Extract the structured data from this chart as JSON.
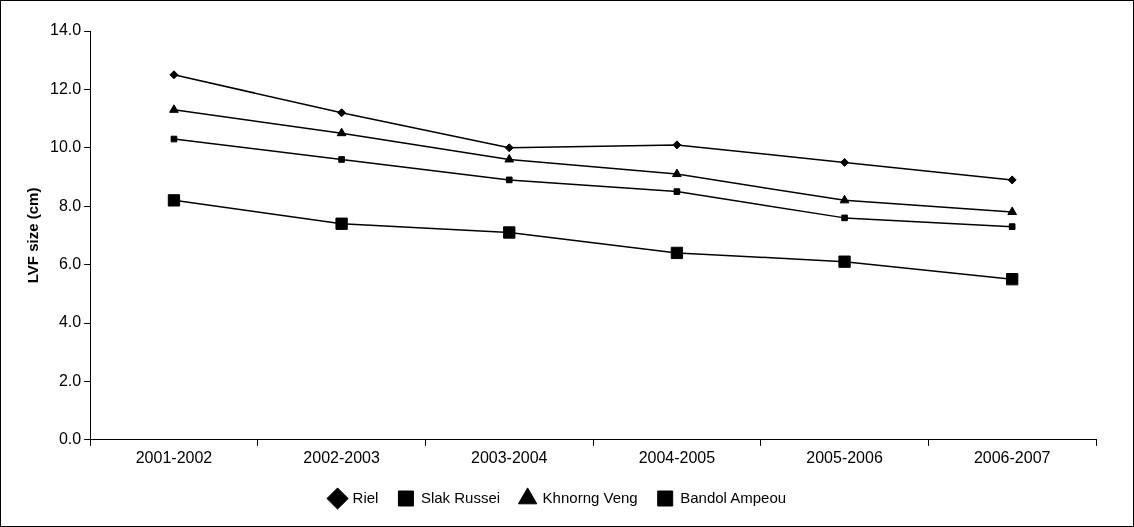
{
  "chart_data": {
    "type": "line",
    "ylabel": "LVF size (cm)",
    "categories": [
      "2001-2002",
      "2002-2003",
      "2003-2004",
      "2004-2005",
      "2005-2006",
      "2006-2007"
    ],
    "series": [
      {
        "name": "Riel",
        "color": "#000000",
        "marker": "diamond",
        "values": [
          12.5,
          11.2,
          10.0,
          10.1,
          9.5,
          8.9
        ]
      },
      {
        "name": "Slak Russei",
        "color": "#000000",
        "marker": "square",
        "values": [
          10.3,
          9.6,
          8.9,
          8.5,
          7.6,
          7.3
        ]
      },
      {
        "name": "Khnorng Veng",
        "color": "#000000",
        "marker": "triangle",
        "values": [
          11.3,
          10.5,
          9.6,
          9.1,
          8.2,
          7.8
        ]
      },
      {
        "name": "Bandol Ampeou",
        "color": "#000000",
        "marker": "square",
        "values": [
          8.2,
          7.4,
          7.1,
          6.4,
          6.1,
          5.5
        ]
      }
    ],
    "ylim": [
      0,
      14
    ],
    "yticks": [
      {
        "value": 0,
        "label": "0.0"
      },
      {
        "value": 2,
        "label": "2.0"
      },
      {
        "value": 4,
        "label": "4.0"
      },
      {
        "value": 6,
        "label": "6.0"
      },
      {
        "value": 8,
        "label": "8.0"
      },
      {
        "value": 10,
        "label": "10.0"
      },
      {
        "value": 12,
        "label": "12.0"
      },
      {
        "value": 14,
        "label": "14.0"
      }
    ],
    "grid": false,
    "legend": "bottom"
  }
}
